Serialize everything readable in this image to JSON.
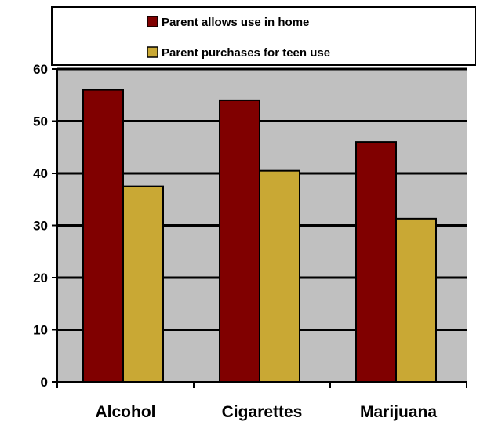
{
  "chart_data": {
    "type": "bar",
    "title": "",
    "xlabel": "",
    "ylabel": "",
    "categories": [
      "Alcohol",
      "Cigarettes",
      "Marijuana"
    ],
    "series": [
      {
        "name": "Parent allows use in home",
        "values": [
          56,
          54,
          46
        ],
        "color": "#800000"
      },
      {
        "name": "Parent purchases for teen use",
        "values": [
          37.5,
          40.5,
          31.3
        ],
        "color": "#C9A834"
      }
    ],
    "ylim": [
      0,
      60
    ],
    "yticks": [
      0,
      10,
      20,
      30,
      40,
      50,
      60
    ],
    "grid": true,
    "plot_background": "#C0C0C0",
    "legend_position": "top"
  }
}
